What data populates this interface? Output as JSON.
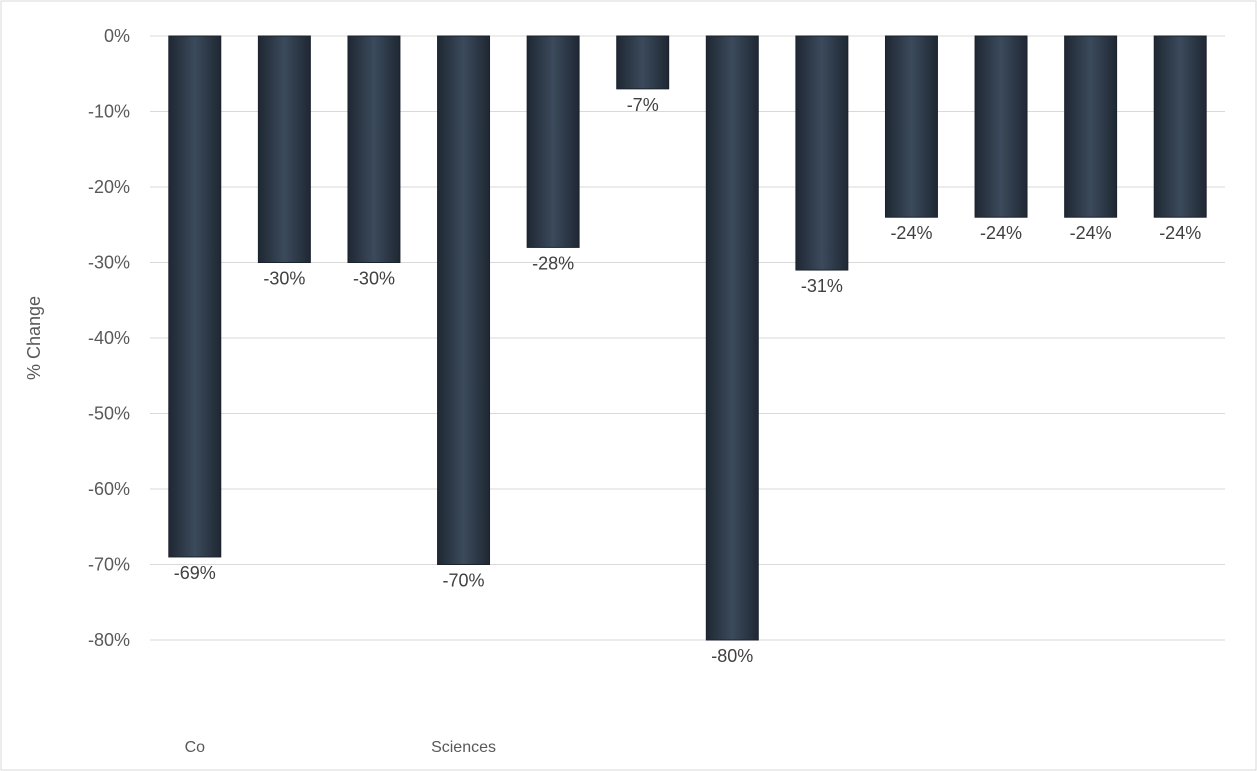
{
  "chart_data": {
    "type": "bar",
    "title": "",
    "xlabel": "",
    "ylabel": "% Change",
    "categories": [
      "Co",
      "",
      "",
      "Sciences",
      "",
      "",
      "",
      "",
      "",
      "",
      "",
      ""
    ],
    "series": [
      {
        "values": [
          -69,
          -30,
          -30,
          -70,
          -28,
          -7,
          -80,
          -31,
          -24,
          -24,
          -24,
          -24
        ]
      }
    ],
    "data_labels": [
      "-69%",
      "-30%",
      "-30%",
      "-70%",
      "-28%",
      "-7%",
      "-80%",
      "-31%",
      "-24%",
      "-24%",
      "-24%",
      "-24%"
    ],
    "ylim": [
      -80,
      0
    ],
    "yticks": [
      "0%",
      "-10%",
      "-20%",
      "-30%",
      "-40%",
      "-50%",
      "-60%",
      "-70%",
      "-80%"
    ],
    "grid": true,
    "legend": "none",
    "colors": {
      "bar": "#323f4f",
      "grid": "#d9d9d9",
      "text": "#595959"
    }
  }
}
